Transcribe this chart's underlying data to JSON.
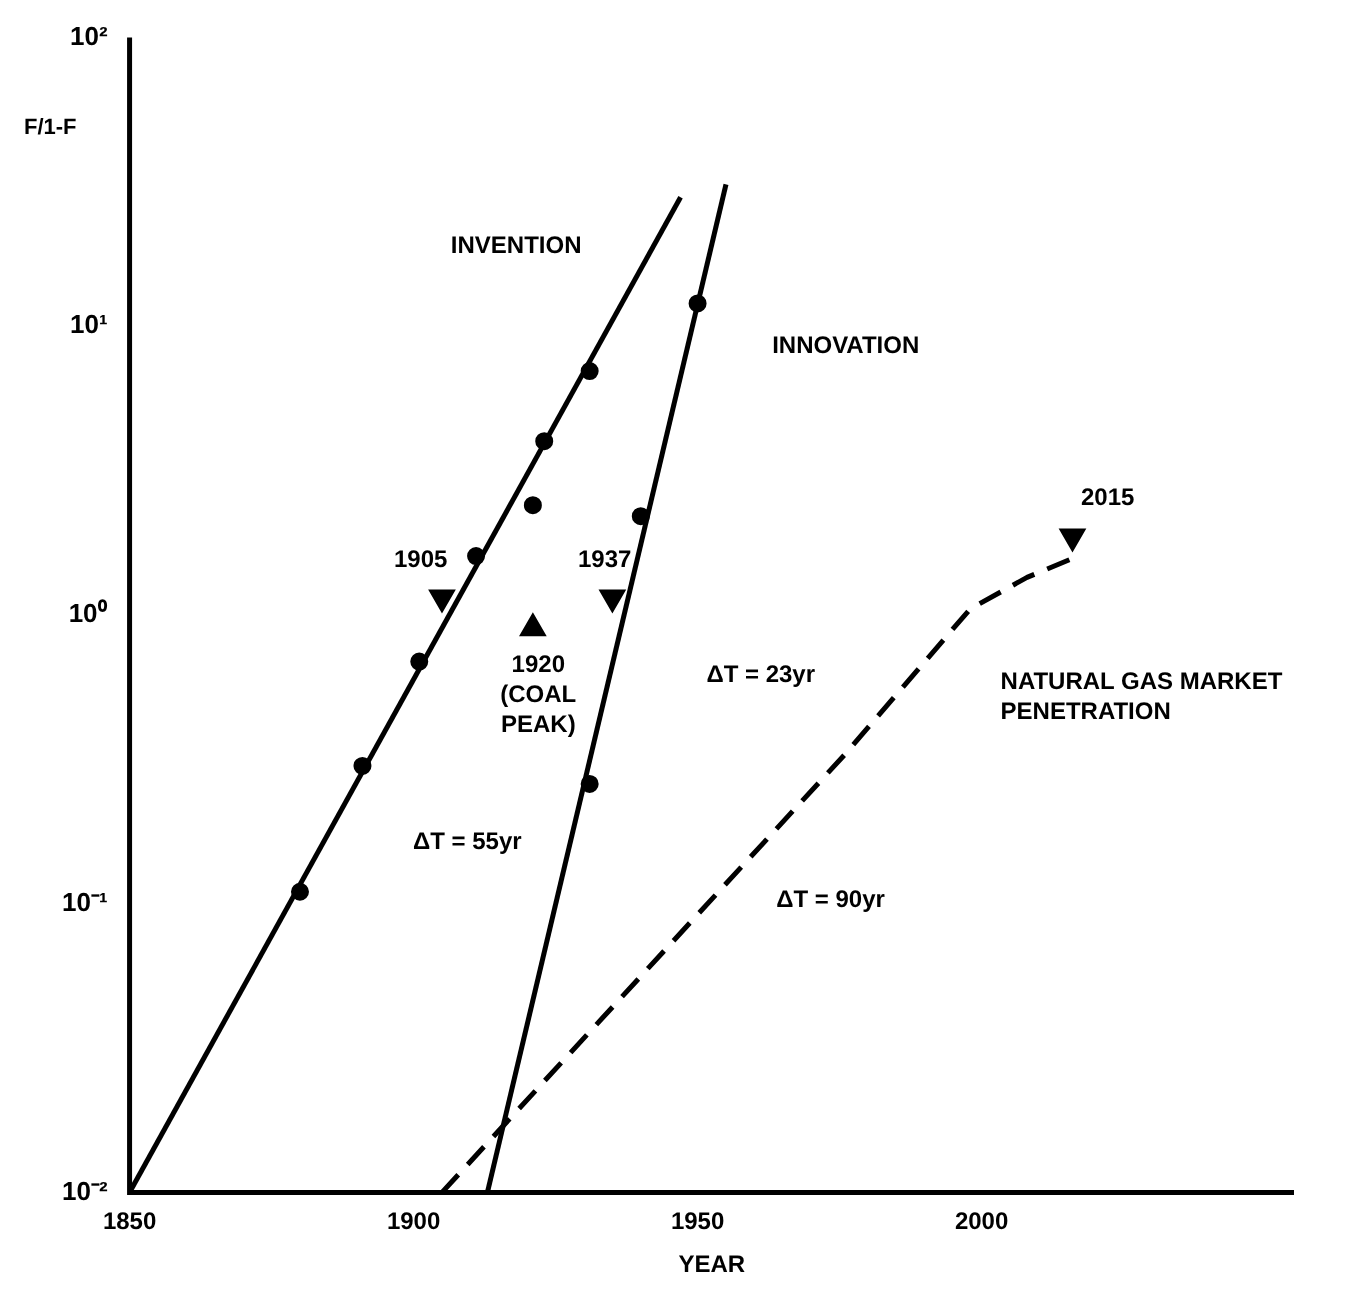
{
  "chart_data": {
    "type": "line",
    "xlabel": "YEAR",
    "ylabel": "F/1-F",
    "log": "y",
    "grid": false,
    "legend": false,
    "xlim": [
      1850,
      2055
    ],
    "xticks": [
      1850,
      1900,
      1950,
      2000
    ],
    "ylim": [
      0.01,
      100
    ],
    "yticks": [
      {
        "value": 0.01,
        "label": "10⁻²"
      },
      {
        "value": 0.1,
        "label": "10⁻¹"
      },
      {
        "value": 1,
        "label": "10⁰"
      },
      {
        "value": 10,
        "label": "10¹"
      },
      {
        "value": 100,
        "label": "10²"
      }
    ],
    "series": [
      {
        "type": "line",
        "color": "#000000",
        "line_style": "solid",
        "marker": "none",
        "x": [
          1850,
          1947
        ],
        "values": [
          0.01,
          28
        ]
      },
      {
        "type": "scatter",
        "color": "#000000",
        "marker": "circle",
        "x": [
          1880,
          1891,
          1901,
          1911,
          1921,
          1923,
          1931
        ],
        "values": [
          0.11,
          0.3,
          0.69,
          1.6,
          2.4,
          4,
          7
        ]
      },
      {
        "type": "line",
        "color": "#000000",
        "line_style": "solid",
        "marker": "none",
        "x": [
          1913,
          1955
        ],
        "values": [
          0.01,
          31
        ]
      },
      {
        "type": "scatter",
        "color": "#000000",
        "marker": "circle",
        "x": [
          1931,
          1940,
          1950
        ],
        "values": [
          0.26,
          2.2,
          12
        ]
      },
      {
        "type": "line",
        "color": "#000000",
        "line_style": "dashed",
        "marker": "none",
        "x": [
          1905,
          1976,
          1998,
          2008,
          2017
        ],
        "values": [
          0.01,
          0.33,
          1.05,
          1.35,
          1.6
        ]
      },
      {
        "type": "scatter",
        "color": "#000000",
        "marker": "triangle-down",
        "x": [
          1905,
          1935,
          2016
        ],
        "values": [
          1.15,
          1.15,
          1.87
        ]
      },
      {
        "type": "scatter",
        "color": "#000000",
        "marker": "triangle",
        "x": [
          1921
        ],
        "values": [
          0.9
        ]
      }
    ],
    "annotations": [
      "INVENTION",
      "INNOVATION",
      "NATURAL GAS MARKET\nPENETRATION",
      "1905",
      "1937",
      "1920\n(COAL\nPEAK)",
      "2015",
      "ΔT = 55yr",
      "ΔT = 23yr",
      "ΔT = 90yr"
    ]
  }
}
